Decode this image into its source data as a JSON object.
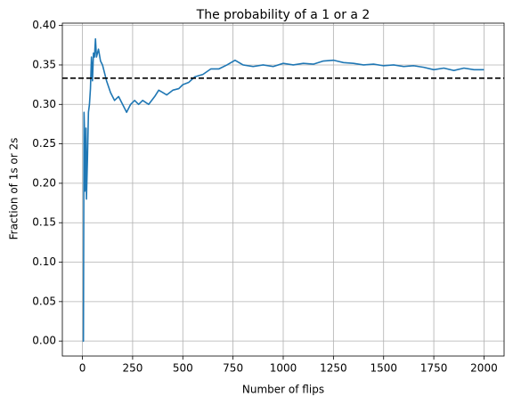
{
  "chart_data": {
    "type": "line",
    "title": "The probability of a 1 or a 2",
    "x_label": "Number of flips",
    "y_label": "Fraction of 1s or 2s",
    "x": [
      1,
      5,
      8,
      10,
      12,
      15,
      18,
      20,
      25,
      30,
      35,
      40,
      45,
      50,
      55,
      60,
      65,
      70,
      80,
      90,
      100,
      110,
      120,
      140,
      160,
      180,
      200,
      220,
      240,
      260,
      280,
      300,
      330,
      360,
      380,
      400,
      420,
      450,
      480,
      500,
      530,
      560,
      600,
      640,
      680,
      720,
      760,
      800,
      850,
      900,
      950,
      1000,
      1050,
      1100,
      1150,
      1200,
      1250,
      1300,
      1350,
      1400,
      1450,
      1500,
      1550,
      1600,
      1650,
      1700,
      1750,
      1800,
      1850,
      1900,
      1950,
      2000
    ],
    "series": [
      {
        "color": "#1f77b4",
        "values": [
          0,
          0,
          0.29,
          0.27,
          0.19,
          0.2,
          0.27,
          0.18,
          0.23,
          0.29,
          0.3,
          0.32,
          0.36,
          0.33,
          0.365,
          0.36,
          0.383,
          0.36,
          0.37,
          0.355,
          0.35,
          0.34,
          0.33,
          0.315,
          0.305,
          0.31,
          0.3,
          0.29,
          0.3,
          0.305,
          0.3,
          0.305,
          0.3,
          0.31,
          0.318,
          0.315,
          0.312,
          0.318,
          0.32,
          0.325,
          0.328,
          0.335,
          0.338,
          0.345,
          0.345,
          0.35,
          0.356,
          0.35,
          0.348,
          0.35,
          0.348,
          0.352,
          0.35,
          0.352,
          0.351,
          0.355,
          0.356,
          0.353,
          0.352,
          0.35,
          0.351,
          0.349,
          0.35,
          0.348,
          0.349,
          0.347,
          0.344,
          0.346,
          0.343,
          0.346,
          0.344,
          0.344
        ]
      }
    ],
    "hline": {
      "value": 0.3333,
      "color": "#000000",
      "style": "dashed"
    },
    "xlim": [
      -100,
      2100
    ],
    "ylim": [
      -0.019,
      0.403
    ],
    "xticks": [
      0,
      250,
      500,
      750,
      1000,
      1250,
      1500,
      1750,
      2000
    ],
    "yticks": [
      {
        "value": 0,
        "label": "0.00"
      },
      0.05,
      {
        "value": 0.1,
        "label": "0.10"
      },
      0.15,
      {
        "value": 0.2,
        "label": "0.20"
      },
      0.25,
      {
        "value": 0.3,
        "label": "0.30"
      },
      0.35,
      {
        "value": 0.4,
        "label": "0.40"
      }
    ],
    "grid": true
  }
}
